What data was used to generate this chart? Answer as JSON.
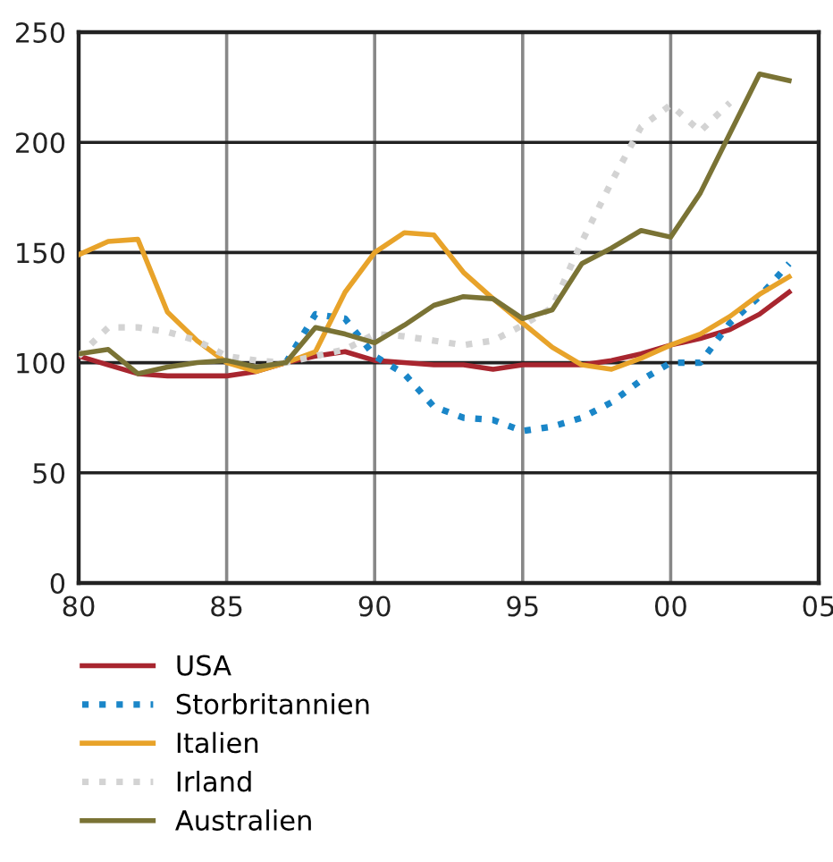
{
  "chart_data": {
    "type": "line",
    "x": [
      1980,
      1981,
      1982,
      1983,
      1984,
      1985,
      1986,
      1987,
      1988,
      1989,
      1990,
      1991,
      1992,
      1993,
      1994,
      1995,
      1996,
      1997,
      1998,
      1999,
      2000,
      2001,
      2002,
      2003,
      2004
    ],
    "series": [
      {
        "name": "USA",
        "color": "#a8262f",
        "line_style": "solid",
        "values": [
          103,
          99,
          95,
          94,
          94,
          94,
          96,
          100,
          103,
          105,
          101,
          100,
          99,
          99,
          97,
          99,
          99,
          99,
          101,
          104,
          108,
          111,
          115,
          122,
          132
        ]
      },
      {
        "name": "Storbritannien",
        "color": "#1a86c8",
        "line_style": "dotted",
        "values": [
          null,
          null,
          null,
          null,
          null,
          null,
          null,
          100,
          122,
          120,
          103,
          95,
          80,
          75,
          74,
          69,
          71,
          75,
          82,
          92,
          100,
          100,
          118,
          130,
          145
        ]
      },
      {
        "name": "Italien",
        "color": "#e8a32a",
        "line_style": "solid",
        "values": [
          149,
          155,
          156,
          123,
          110,
          100,
          96,
          100,
          105,
          132,
          150,
          159,
          158,
          141,
          129,
          118,
          107,
          99,
          97,
          102,
          108,
          113,
          121,
          131,
          139
        ]
      },
      {
        "name": "Irland",
        "color": "#d3d3d3",
        "line_style": "dotted",
        "values": [
          103,
          116,
          116,
          114,
          110,
          103,
          101,
          100,
          103,
          106,
          113,
          112,
          110,
          108,
          110,
          117,
          125,
          155,
          182,
          207,
          217,
          205,
          218,
          null,
          null
        ]
      },
      {
        "name": "Australien",
        "color": "#7a7335",
        "line_style": "solid",
        "values": [
          104,
          106,
          95,
          98,
          100,
          101,
          98,
          100,
          116,
          113,
          109,
          117,
          126,
          130,
          129,
          120,
          124,
          145,
          152,
          160,
          157,
          177,
          204,
          231,
          228
        ]
      }
    ],
    "xlim": [
      1980,
      2005
    ],
    "xticks": [
      {
        "value": 1980,
        "label": "80"
      },
      {
        "value": 1985,
        "label": "85"
      },
      {
        "value": 1990,
        "label": "90"
      },
      {
        "value": 1995,
        "label": "95"
      },
      {
        "value": 2000,
        "label": "00"
      },
      {
        "value": 2005,
        "label": "05"
      }
    ],
    "ylim": [
      0,
      250
    ],
    "yticks": [
      0,
      50,
      100,
      150,
      200,
      250
    ],
    "grid": true,
    "legend": "bottom",
    "marker": "none"
  }
}
